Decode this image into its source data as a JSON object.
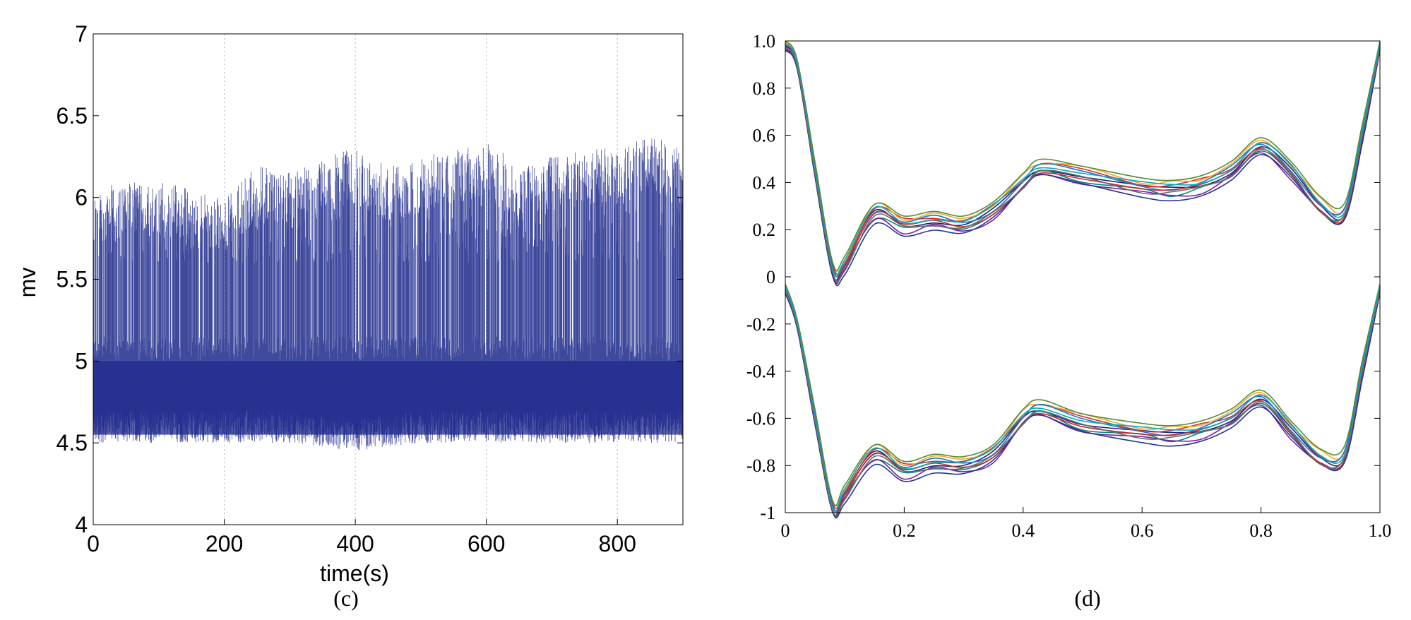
{
  "chart_data": [
    {
      "type": "line",
      "panel_label": "(c)",
      "title": "",
      "xlabel": "time(s)",
      "ylabel": "mv",
      "xlim": [
        0,
        900
      ],
      "ylim": [
        4,
        7
      ],
      "xticks": [
        0,
        200,
        400,
        600,
        800
      ],
      "xtick_labels": [
        "0",
        "200",
        "400",
        "600",
        "800"
      ],
      "yticks": [
        4,
        4.5,
        5,
        5.5,
        6,
        6.5,
        7
      ],
      "ytick_labels": [
        "4",
        "4.5",
        "5",
        "5.5",
        "6",
        "6.5",
        "7"
      ],
      "grid": "vertical dotted at x ticks",
      "legend": "none",
      "color": "#1f2a8c",
      "baseline_band": [
        4.55,
        5.0
      ],
      "baseline_center": 4.8,
      "peak_envelope": {
        "x": [
          0,
          50,
          100,
          150,
          200,
          250,
          300,
          350,
          400,
          450,
          500,
          550,
          600,
          650,
          700,
          750,
          800,
          850,
          900
        ],
        "y": [
          6.05,
          6.1,
          6.1,
          6.05,
          6.0,
          6.2,
          6.15,
          6.25,
          6.3,
          6.2,
          6.25,
          6.3,
          6.35,
          6.2,
          6.25,
          6.3,
          6.3,
          6.4,
          6.3
        ]
      },
      "trough_envelope": {
        "x": [
          0,
          100,
          200,
          300,
          400,
          500,
          600,
          700,
          800,
          900
        ],
        "y": [
          4.5,
          4.5,
          4.5,
          4.5,
          4.45,
          4.5,
          4.5,
          4.5,
          4.5,
          4.5
        ]
      }
    },
    {
      "type": "line",
      "panel_label": "(d)",
      "title": "",
      "xlabel": "",
      "ylabel": "",
      "xlim": [
        0,
        1.0
      ],
      "ylim": [
        -1,
        1.0
      ],
      "xticks": [
        0,
        0.2,
        0.4,
        0.6,
        0.8,
        1.0
      ],
      "xtick_labels": [
        "0",
        "0.2",
        "0.4",
        "0.6",
        "0.8",
        "1.0"
      ],
      "yticks": [
        1.0,
        0.8,
        0.6,
        0.4,
        0.2,
        0,
        -0.2,
        -0.4,
        -0.6,
        -0.8,
        -1
      ],
      "ytick_labels": [
        "1.0",
        "0.8",
        "0.6",
        "0.4",
        "0.2",
        "0",
        "-0.2",
        "-0.4",
        "-0.6",
        "-0.8",
        "-1"
      ],
      "grid": "off",
      "legend": "none",
      "x": [
        0,
        0.02,
        0.05,
        0.08,
        0.1,
        0.15,
        0.2,
        0.25,
        0.3,
        0.35,
        0.4,
        0.43,
        0.5,
        0.6,
        0.65,
        0.7,
        0.75,
        0.8,
        0.85,
        0.9,
        0.94,
        0.97,
        1.0
      ],
      "upper_group": {
        "base_y": [
          0.98,
          0.9,
          0.45,
          0.02,
          0.05,
          0.27,
          0.22,
          0.24,
          0.22,
          0.28,
          0.4,
          0.46,
          0.43,
          0.38,
          0.37,
          0.39,
          0.45,
          0.55,
          0.45,
          0.3,
          0.27,
          0.6,
          0.98
        ],
        "variations": [
          0.0,
          0.02,
          -0.02,
          0.03,
          -0.03,
          0.01,
          -0.01,
          0.04,
          -0.04,
          0.015,
          -0.015
        ],
        "colors": [
          "#1a237e",
          "#d32f2f",
          "#00897b",
          "#f9a825",
          "#7b1fa2",
          "#1976d2",
          "#c62828",
          "#558b2f",
          "#283593",
          "#00acc1",
          "#6d6d6d"
        ]
      },
      "lower_group": {
        "base_y": [
          -0.05,
          -0.2,
          -0.6,
          -0.99,
          -0.92,
          -0.75,
          -0.82,
          -0.79,
          -0.8,
          -0.75,
          -0.6,
          -0.56,
          -0.62,
          -0.66,
          -0.67,
          -0.65,
          -0.6,
          -0.52,
          -0.65,
          -0.77,
          -0.76,
          -0.4,
          -0.05
        ],
        "variations": [
          0.0,
          0.02,
          -0.02,
          0.03,
          -0.03,
          0.01,
          -0.01,
          0.04,
          -0.04,
          0.015,
          -0.015
        ],
        "colors": [
          "#1a237e",
          "#d32f2f",
          "#00897b",
          "#f9a825",
          "#7b1fa2",
          "#1976d2",
          "#c62828",
          "#558b2f",
          "#283593",
          "#00acc1",
          "#6d6d6d"
        ]
      }
    }
  ]
}
